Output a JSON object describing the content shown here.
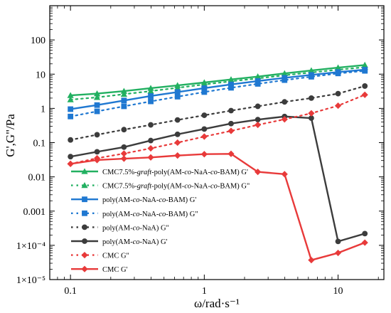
{
  "chart_data": {
    "type": "line",
    "xlabel": "ω/rad·s⁻¹",
    "ylabel": "G',G\"/Pa",
    "x_scale": "log",
    "y_scale": "log",
    "xlim": [
      0.07,
      22
    ],
    "ylim": [
      1e-05,
      1000
    ],
    "x_ticks": [
      {
        "value": 0.1,
        "label": "0.1"
      },
      {
        "value": 1,
        "label": "1"
      },
      {
        "value": 10,
        "label": "10"
      }
    ],
    "y_ticks": [
      {
        "value": 100,
        "label": "100"
      },
      {
        "value": 10,
        "label": "10"
      },
      {
        "value": 1,
        "label": "1"
      },
      {
        "value": 0.1,
        "label": "0.1"
      },
      {
        "value": 0.01,
        "label": "0.01"
      },
      {
        "value": 0.001,
        "label": "0.001"
      },
      {
        "value": 0.0001,
        "label": "1×10⁻⁴"
      },
      {
        "value": 1e-05,
        "label": "1×10⁻⁵"
      }
    ],
    "x": [
      0.1,
      0.158,
      0.251,
      0.398,
      0.631,
      1,
      1.585,
      2.512,
      3.981,
      6.31,
      10,
      15.85
    ],
    "legend_position": "lower-left",
    "series": [
      {
        "name": "CMC7.5%-graft-poly(AM-co-NaA-co-BAM) G'",
        "legend_parts": [
          [
            "CMC7.5%-",
            false
          ],
          [
            "graft",
            true
          ],
          [
            "-poly(AM-",
            false
          ],
          [
            "co",
            true
          ],
          [
            "-NaA-",
            false
          ],
          [
            "co",
            true
          ],
          [
            "-BAM) G'",
            false
          ]
        ],
        "color": "#22b061",
        "marker": "triangle",
        "dash": "solid",
        "values": [
          2.4,
          2.7,
          3.2,
          3.9,
          4.7,
          5.7,
          7.0,
          8.5,
          10.5,
          12.8,
          15.5,
          18.5
        ]
      },
      {
        "name": "CMC7.5%-graft-poly(AM-co-NaA-co-BAM) G\"",
        "legend_parts": [
          [
            "CMC7.5%-",
            false
          ],
          [
            "graft",
            true
          ],
          [
            "-poly(AM-",
            false
          ],
          [
            "co",
            true
          ],
          [
            "-NaA-",
            false
          ],
          [
            "co",
            true
          ],
          [
            "-BAM) G\"",
            false
          ]
        ],
        "color": "#22b061",
        "marker": "triangle",
        "dash": "dotted",
        "values": [
          1.8,
          2.1,
          2.6,
          3.2,
          4.0,
          5.0,
          6.2,
          7.5,
          9.3,
          11.2,
          13.5,
          16.0
        ]
      },
      {
        "name": "poly(AM-co-NaA-co-BAM) G'",
        "legend_parts": [
          [
            "poly(AM-",
            false
          ],
          [
            "co",
            true
          ],
          [
            "-NaA-",
            false
          ],
          [
            "co",
            true
          ],
          [
            "-BAM) G'",
            false
          ]
        ],
        "color": "#1f78d1",
        "marker": "square",
        "dash": "solid",
        "values": [
          0.95,
          1.25,
          1.7,
          2.3,
          3.0,
          3.9,
          5.0,
          6.3,
          7.8,
          9.5,
          11.5,
          13.5
        ]
      },
      {
        "name": "poly(AM-co-NaA-co-BAM) G\"",
        "legend_parts": [
          [
            "poly(AM-",
            false
          ],
          [
            "co",
            true
          ],
          [
            "-NaA-",
            false
          ],
          [
            "co",
            true
          ],
          [
            "-BAM) G\"",
            false
          ]
        ],
        "color": "#1f78d1",
        "marker": "square",
        "dash": "dotted",
        "values": [
          0.58,
          0.82,
          1.15,
          1.6,
          2.2,
          3.0,
          4.0,
          5.2,
          6.7,
          8.4,
          10.5,
          12.5
        ]
      },
      {
        "name": "poly(AM-co-NaA) G\"",
        "legend_parts": [
          [
            "poly(AM-",
            false
          ],
          [
            "co",
            true
          ],
          [
            "-NaA) G\"",
            false
          ]
        ],
        "color": "#3c3c3c",
        "marker": "circle",
        "dash": "dotted",
        "values": [
          0.12,
          0.17,
          0.24,
          0.33,
          0.46,
          0.63,
          0.86,
          1.15,
          1.55,
          2.0,
          2.7,
          4.5
        ]
      },
      {
        "name": "poly(AM-co-NaA) G'",
        "legend_parts": [
          [
            "poly(AM-",
            false
          ],
          [
            "co",
            true
          ],
          [
            "-NaA) G'",
            false
          ]
        ],
        "color": "#3c3c3c",
        "marker": "circle",
        "dash": "solid",
        "values": [
          0.039,
          0.054,
          0.074,
          0.115,
          0.175,
          0.25,
          0.36,
          0.47,
          0.58,
          0.52,
          0.00013,
          0.00022
        ]
      },
      {
        "name": "CMC G\"",
        "legend_parts": [
          [
            "CMC G\"",
            false
          ]
        ],
        "color": "#e83a3a",
        "marker": "diamond",
        "dash": "dotted",
        "values": [
          0.024,
          0.035,
          0.048,
          0.068,
          0.1,
          0.15,
          0.22,
          0.33,
          0.48,
          0.72,
          1.2,
          2.5
        ]
      },
      {
        "name": "CMC G'",
        "legend_parts": [
          [
            "CMC G'",
            false
          ]
        ],
        "color": "#e83a3a",
        "marker": "diamond",
        "dash": "solid",
        "values": [
          0.024,
          0.031,
          0.034,
          0.037,
          0.042,
          0.046,
          0.047,
          0.014,
          0.012,
          3.7e-05,
          6e-05,
          0.00012
        ]
      }
    ]
  }
}
